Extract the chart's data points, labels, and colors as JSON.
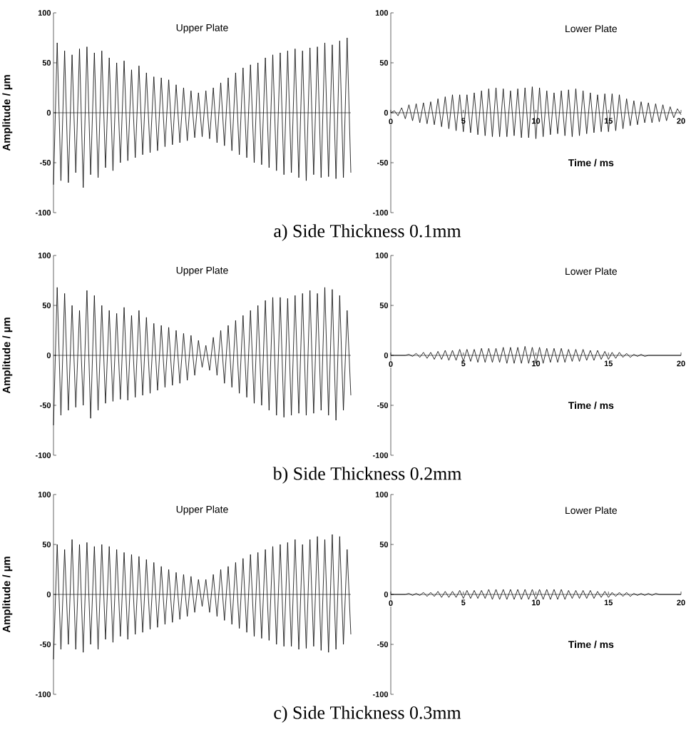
{
  "chart_data": [
    {
      "type": "line",
      "title": "Upper Plate",
      "ylabel": "Amplitude / µm",
      "ylim": [
        -100,
        100
      ],
      "yticks": [
        -100,
        -50,
        0,
        50,
        100
      ],
      "tick_labels": "y",
      "categories": [
        null,
        null,
        null,
        null,
        null,
        null,
        null,
        null,
        null,
        null,
        null,
        null,
        null,
        null,
        null,
        null,
        null,
        null,
        null,
        null,
        null,
        null,
        null,
        null,
        null,
        null,
        null,
        null,
        null,
        null,
        null,
        null,
        null,
        null,
        null,
        null,
        null,
        null,
        null,
        null,
        null,
        null,
        null,
        null,
        null,
        null,
        null,
        null,
        null,
        null,
        null,
        null,
        null,
        null,
        null,
        null,
        null,
        null,
        null,
        null,
        null,
        null,
        null,
        null,
        null,
        null,
        null,
        null,
        null,
        null,
        null,
        null,
        null,
        null,
        null,
        null,
        null,
        null,
        null,
        null,
        null
      ],
      "series": [
        {
          "color": "#000000",
          "values": [
            -72,
            70,
            -68,
            62,
            -70,
            58,
            -60,
            64,
            -75,
            66,
            -62,
            60,
            -65,
            62,
            -55,
            55,
            -58,
            50,
            -50,
            52,
            -48,
            43,
            -45,
            47,
            -42,
            40,
            -40,
            36,
            -38,
            35,
            -34,
            33,
            -32,
            28,
            -30,
            25,
            -28,
            22,
            -25,
            20,
            -24,
            22,
            -26,
            25,
            -30,
            30,
            -33,
            35,
            -38,
            40,
            -42,
            45,
            -45,
            48,
            -50,
            50,
            -52,
            55,
            -55,
            58,
            -58,
            60,
            -62,
            62,
            -60,
            64,
            -65,
            62,
            -68,
            65,
            -62,
            66,
            -65,
            70,
            -64,
            68,
            -66,
            72,
            -65,
            75,
            -60
          ]
        }
      ]
    },
    {
      "type": "line",
      "title": "Lower Plate",
      "xlabel": "Time / ms",
      "xlim": [
        0,
        20
      ],
      "xticks": [
        0,
        5,
        10,
        15,
        20
      ],
      "ylim": [
        -100,
        100
      ],
      "yticks": [
        -100,
        -50,
        0,
        50,
        100
      ],
      "annotations": [
        "a) Side Thickness 0.1mm"
      ],
      "x": [
        0,
        0.25,
        0.5,
        0.75,
        1,
        1.25,
        1.5,
        1.75,
        2,
        2.25,
        2.5,
        2.75,
        3,
        3.25,
        3.5,
        3.75,
        4,
        4.25,
        4.5,
        4.75,
        5,
        5.25,
        5.5,
        5.75,
        6,
        6.25,
        6.5,
        6.75,
        7,
        7.25,
        7.5,
        7.75,
        8,
        8.25,
        8.5,
        8.75,
        9,
        9.25,
        9.5,
        9.75,
        10,
        10.25,
        10.5,
        10.75,
        11,
        11.25,
        11.5,
        11.75,
        12,
        12.25,
        12.5,
        12.75,
        13,
        13.25,
        13.5,
        13.75,
        14,
        14.25,
        14.5,
        14.75,
        15,
        15.25,
        15.5,
        15.75,
        16,
        16.25,
        16.5,
        16.75,
        17,
        17.25,
        17.5,
        17.75,
        18,
        18.25,
        18.5,
        18.75,
        19,
        19.25,
        19.5,
        19.75,
        20
      ],
      "series": [
        {
          "color": "#000000",
          "values": [
            0,
            2,
            -3,
            5,
            -6,
            8,
            -8,
            9,
            -10,
            10,
            -11,
            11,
            -12,
            14,
            -14,
            16,
            -16,
            18,
            -18,
            18,
            -19,
            18,
            -20,
            20,
            -22,
            22,
            -23,
            24,
            -24,
            25,
            -24,
            24,
            -24,
            22,
            -23,
            24,
            -25,
            25,
            -25,
            26,
            -26,
            25,
            -24,
            22,
            -22,
            20,
            -21,
            22,
            -23,
            23,
            -24,
            24,
            -23,
            22,
            -21,
            20,
            -20,
            18,
            -19,
            19,
            -19,
            19,
            -18,
            18,
            -16,
            14,
            -13,
            12,
            -12,
            11,
            -10,
            10,
            -10,
            9,
            -9,
            8,
            -8,
            6,
            -5,
            4,
            -2
          ]
        }
      ]
    },
    {
      "type": "line",
      "title": "Upper Plate",
      "ylabel": "Amplitude / µm",
      "ylim": [
        -100,
        100
      ],
      "yticks": [
        -100,
        -50,
        0,
        50,
        100
      ],
      "tick_labels": "y",
      "categories": [
        null,
        null,
        null,
        null,
        null,
        null,
        null,
        null,
        null,
        null,
        null,
        null,
        null,
        null,
        null,
        null,
        null,
        null,
        null,
        null,
        null,
        null,
        null,
        null,
        null,
        null,
        null,
        null,
        null,
        null,
        null,
        null,
        null,
        null,
        null,
        null,
        null,
        null,
        null,
        null,
        null,
        null,
        null,
        null,
        null,
        null,
        null,
        null,
        null,
        null,
        null,
        null,
        null,
        null,
        null,
        null,
        null,
        null,
        null,
        null,
        null,
        null,
        null,
        null,
        null,
        null,
        null,
        null,
        null,
        null,
        null,
        null,
        null,
        null,
        null,
        null,
        null,
        null,
        null,
        null,
        null
      ],
      "series": [
        {
          "color": "#000000",
          "values": [
            -70,
            68,
            -60,
            62,
            -55,
            50,
            -52,
            45,
            -50,
            65,
            -63,
            60,
            -55,
            50,
            -48,
            45,
            -46,
            42,
            -44,
            48,
            -45,
            40,
            -42,
            45,
            -40,
            38,
            -38,
            32,
            -35,
            30,
            -32,
            28,
            -30,
            25,
            -28,
            22,
            -25,
            20,
            -20,
            15,
            -12,
            10,
            -15,
            18,
            -20,
            25,
            -28,
            30,
            -32,
            35,
            -38,
            40,
            -42,
            45,
            -48,
            50,
            -50,
            55,
            -55,
            58,
            -60,
            58,
            -62,
            57,
            -60,
            60,
            -58,
            62,
            -60,
            65,
            -58,
            62,
            -55,
            68,
            -60,
            66,
            -65,
            60,
            -55,
            45,
            -40
          ]
        }
      ]
    },
    {
      "type": "line",
      "title": "Lower Plate",
      "xlabel": "Time / ms",
      "xlim": [
        0,
        20
      ],
      "xticks": [
        0,
        5,
        10,
        15,
        20
      ],
      "ylim": [
        -100,
        100
      ],
      "yticks": [
        -100,
        -50,
        0,
        50,
        100
      ],
      "annotations": [
        "b) Side Thickness 0.2mm"
      ],
      "x": [
        0,
        0.25,
        0.5,
        0.75,
        1,
        1.25,
        1.5,
        1.75,
        2,
        2.25,
        2.5,
        2.75,
        3,
        3.25,
        3.5,
        3.75,
        4,
        4.25,
        4.5,
        4.75,
        5,
        5.25,
        5.5,
        5.75,
        6,
        6.25,
        6.5,
        6.75,
        7,
        7.25,
        7.5,
        7.75,
        8,
        8.25,
        8.5,
        8.75,
        9,
        9.25,
        9.5,
        9.75,
        10,
        10.25,
        10.5,
        10.75,
        11,
        11.25,
        11.5,
        11.75,
        12,
        12.25,
        12.5,
        12.75,
        13,
        13.25,
        13.5,
        13.75,
        14,
        14.25,
        14.5,
        14.75,
        15,
        15.25,
        15.5,
        15.75,
        16,
        16.25,
        16.5,
        16.75,
        17,
        17.25,
        17.5,
        17.75,
        18,
        18.25,
        18.5,
        18.75,
        19,
        19.25,
        19.5,
        19.75,
        20
      ],
      "series": [
        {
          "color": "#000000",
          "values": [
            0,
            0,
            0,
            0,
            0,
            1,
            -1,
            2,
            -2,
            3,
            -3,
            3,
            -4,
            4,
            -4,
            5,
            -5,
            5,
            -5,
            6,
            -6,
            6,
            -6,
            6,
            -7,
            7,
            -7,
            7,
            -7,
            7,
            -7,
            8,
            -8,
            8,
            -8,
            8,
            -8,
            9,
            -8,
            8,
            -8,
            8,
            -8,
            7,
            -7,
            7,
            -7,
            7,
            -7,
            6,
            -6,
            6,
            -6,
            6,
            -5,
            5,
            -5,
            5,
            -4,
            4,
            -4,
            3,
            -3,
            3,
            -2,
            2,
            -2,
            1,
            -1,
            1,
            -1,
            0,
            0,
            0,
            0,
            0,
            0,
            0,
            0,
            0,
            0
          ]
        }
      ]
    },
    {
      "type": "line",
      "title": "Upper Plate",
      "ylabel": "Amplitude / µm",
      "ylim": [
        -100,
        100
      ],
      "yticks": [
        -100,
        -50,
        0,
        50,
        100
      ],
      "tick_labels": "y",
      "categories": [
        null,
        null,
        null,
        null,
        null,
        null,
        null,
        null,
        null,
        null,
        null,
        null,
        null,
        null,
        null,
        null,
        null,
        null,
        null,
        null,
        null,
        null,
        null,
        null,
        null,
        null,
        null,
        null,
        null,
        null,
        null,
        null,
        null,
        null,
        null,
        null,
        null,
        null,
        null,
        null,
        null,
        null,
        null,
        null,
        null,
        null,
        null,
        null,
        null,
        null,
        null,
        null,
        null,
        null,
        null,
        null,
        null,
        null,
        null,
        null,
        null,
        null,
        null,
        null,
        null,
        null,
        null,
        null,
        null,
        null,
        null,
        null,
        null,
        null,
        null,
        null,
        null,
        null,
        null,
        null,
        null
      ],
      "series": [
        {
          "color": "#000000",
          "values": [
            -65,
            50,
            -55,
            45,
            -50,
            55,
            -55,
            50,
            -58,
            52,
            -50,
            48,
            -55,
            50,
            -45,
            48,
            -48,
            45,
            -42,
            42,
            -45,
            40,
            -40,
            38,
            -38,
            35,
            -35,
            32,
            -33,
            28,
            -30,
            25,
            -28,
            22,
            -25,
            20,
            -22,
            18,
            -18,
            15,
            -12,
            15,
            -18,
            20,
            -22,
            25,
            -26,
            28,
            -30,
            32,
            -34,
            36,
            -38,
            40,
            -42,
            42,
            -44,
            45,
            -46,
            48,
            -50,
            50,
            -52,
            52,
            -52,
            55,
            -55,
            50,
            -54,
            55,
            -52,
            58,
            -56,
            55,
            -58,
            60,
            -55,
            58,
            -50,
            45,
            -40
          ]
        }
      ]
    },
    {
      "type": "line",
      "title": "Lower Plate",
      "xlabel": "Time / ms",
      "xlim": [
        0,
        20
      ],
      "xticks": [
        0,
        5,
        10,
        15,
        20
      ],
      "ylim": [
        -100,
        100
      ],
      "yticks": [
        -100,
        -50,
        0,
        50,
        100
      ],
      "annotations": [
        "c) Side Thickness 0.3mm"
      ],
      "x": [
        0,
        0.25,
        0.5,
        0.75,
        1,
        1.25,
        1.5,
        1.75,
        2,
        2.25,
        2.5,
        2.75,
        3,
        3.25,
        3.5,
        3.75,
        4,
        4.25,
        4.5,
        4.75,
        5,
        5.25,
        5.5,
        5.75,
        6,
        6.25,
        6.5,
        6.75,
        7,
        7.25,
        7.5,
        7.75,
        8,
        8.25,
        8.5,
        8.75,
        9,
        9.25,
        9.5,
        9.75,
        10,
        10.25,
        10.5,
        10.75,
        11,
        11.25,
        11.5,
        11.75,
        12,
        12.25,
        12.5,
        12.75,
        13,
        13.25,
        13.5,
        13.75,
        14,
        14.25,
        14.5,
        14.75,
        15,
        15.25,
        15.5,
        15.75,
        16,
        16.25,
        16.5,
        16.75,
        17,
        17.25,
        17.5,
        17.75,
        18,
        18.25,
        18.5,
        18.75,
        19,
        19.25,
        19.5,
        19.75,
        20
      ],
      "series": [
        {
          "color": "#000000",
          "values": [
            0,
            0,
            0,
            0,
            0,
            1,
            -1,
            1,
            -1,
            2,
            -2,
            2,
            -2,
            3,
            -3,
            3,
            -3,
            3,
            -3,
            4,
            -4,
            4,
            -4,
            4,
            -4,
            4,
            -4,
            5,
            -5,
            5,
            -5,
            5,
            -5,
            5,
            -5,
            5,
            -5,
            5,
            -5,
            5,
            -5,
            5,
            -5,
            5,
            -5,
            5,
            -5,
            5,
            -5,
            4,
            -4,
            4,
            -4,
            4,
            -4,
            4,
            -4,
            3,
            -3,
            3,
            -3,
            2,
            -2,
            2,
            -2,
            2,
            -2,
            1,
            -1,
            1,
            -1,
            1,
            -1,
            1,
            0,
            0,
            0,
            0,
            0,
            0,
            0
          ]
        }
      ]
    }
  ]
}
